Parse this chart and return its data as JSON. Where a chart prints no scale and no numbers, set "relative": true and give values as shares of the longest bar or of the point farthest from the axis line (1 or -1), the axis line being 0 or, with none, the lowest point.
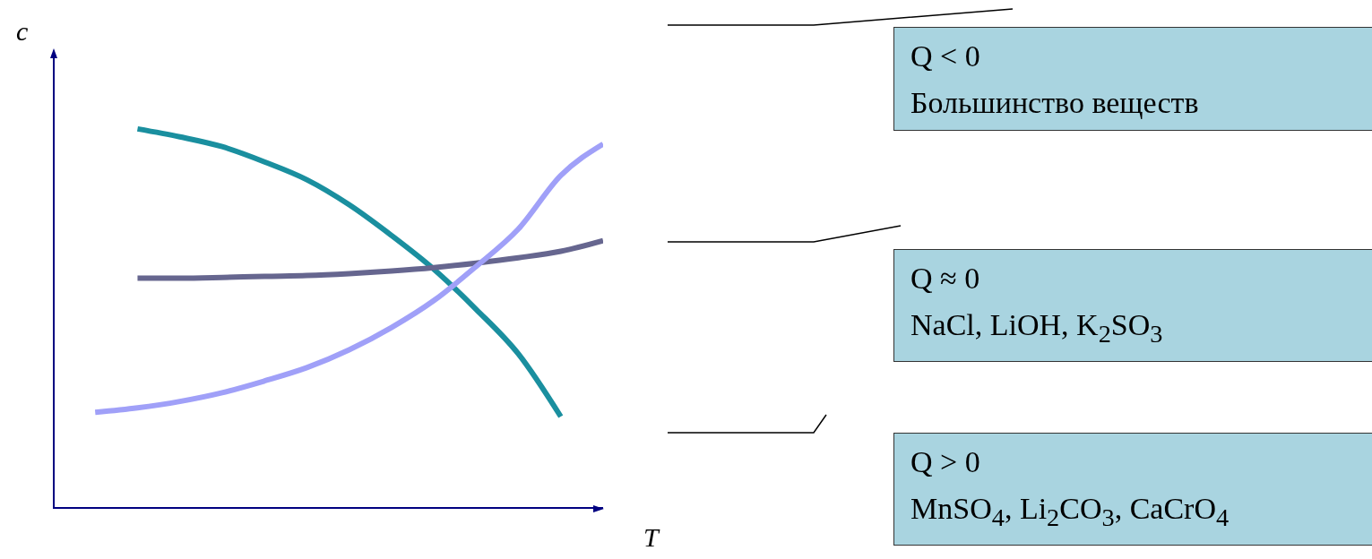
{
  "chart_data": {
    "type": "line",
    "relative": true,
    "xlabel": "T",
    "ylabel": "c",
    "categories": [
      null,
      null,
      null,
      null,
      null,
      null,
      null,
      null,
      null,
      null,
      null,
      null,
      null
    ],
    "series": [
      {
        "color": "#1a8f9f",
        "values": [
          null,
          1,
          0.979,
          0.953,
          0.913,
          0.866,
          0.8,
          0.719,
          0.63,
          0.524,
          0.406,
          0.241,
          null
        ]
      },
      {
        "color": "#66668f",
        "values": [
          null,
          0.606,
          0.606,
          0.608,
          0.611,
          0.613,
          0.618,
          0.625,
          0.634,
          0.646,
          0.66,
          0.677,
          0.705
        ]
      },
      {
        "color": "#a0a0f8",
        "values": [
          0.252,
          0.264,
          0.281,
          0.304,
          0.335,
          0.37,
          0.417,
          0.476,
          0.547,
          0.637,
          0.736,
          0.877,
          0.96
        ]
      }
    ],
    "annotations": [
      "Q < 0",
      "Большинство веществ",
      "Q ≈ 0",
      "NaCl, LiOH, K$_{2}$SO$_{3}$",
      "Q > 0",
      "MnSO$_{4}$, Li$_{2}$CO$_{3}$, CaCrO$_{4}$"
    ],
    "legend": false,
    "grid": false,
    "marker": "none",
    "line_style": "solid"
  }
}
